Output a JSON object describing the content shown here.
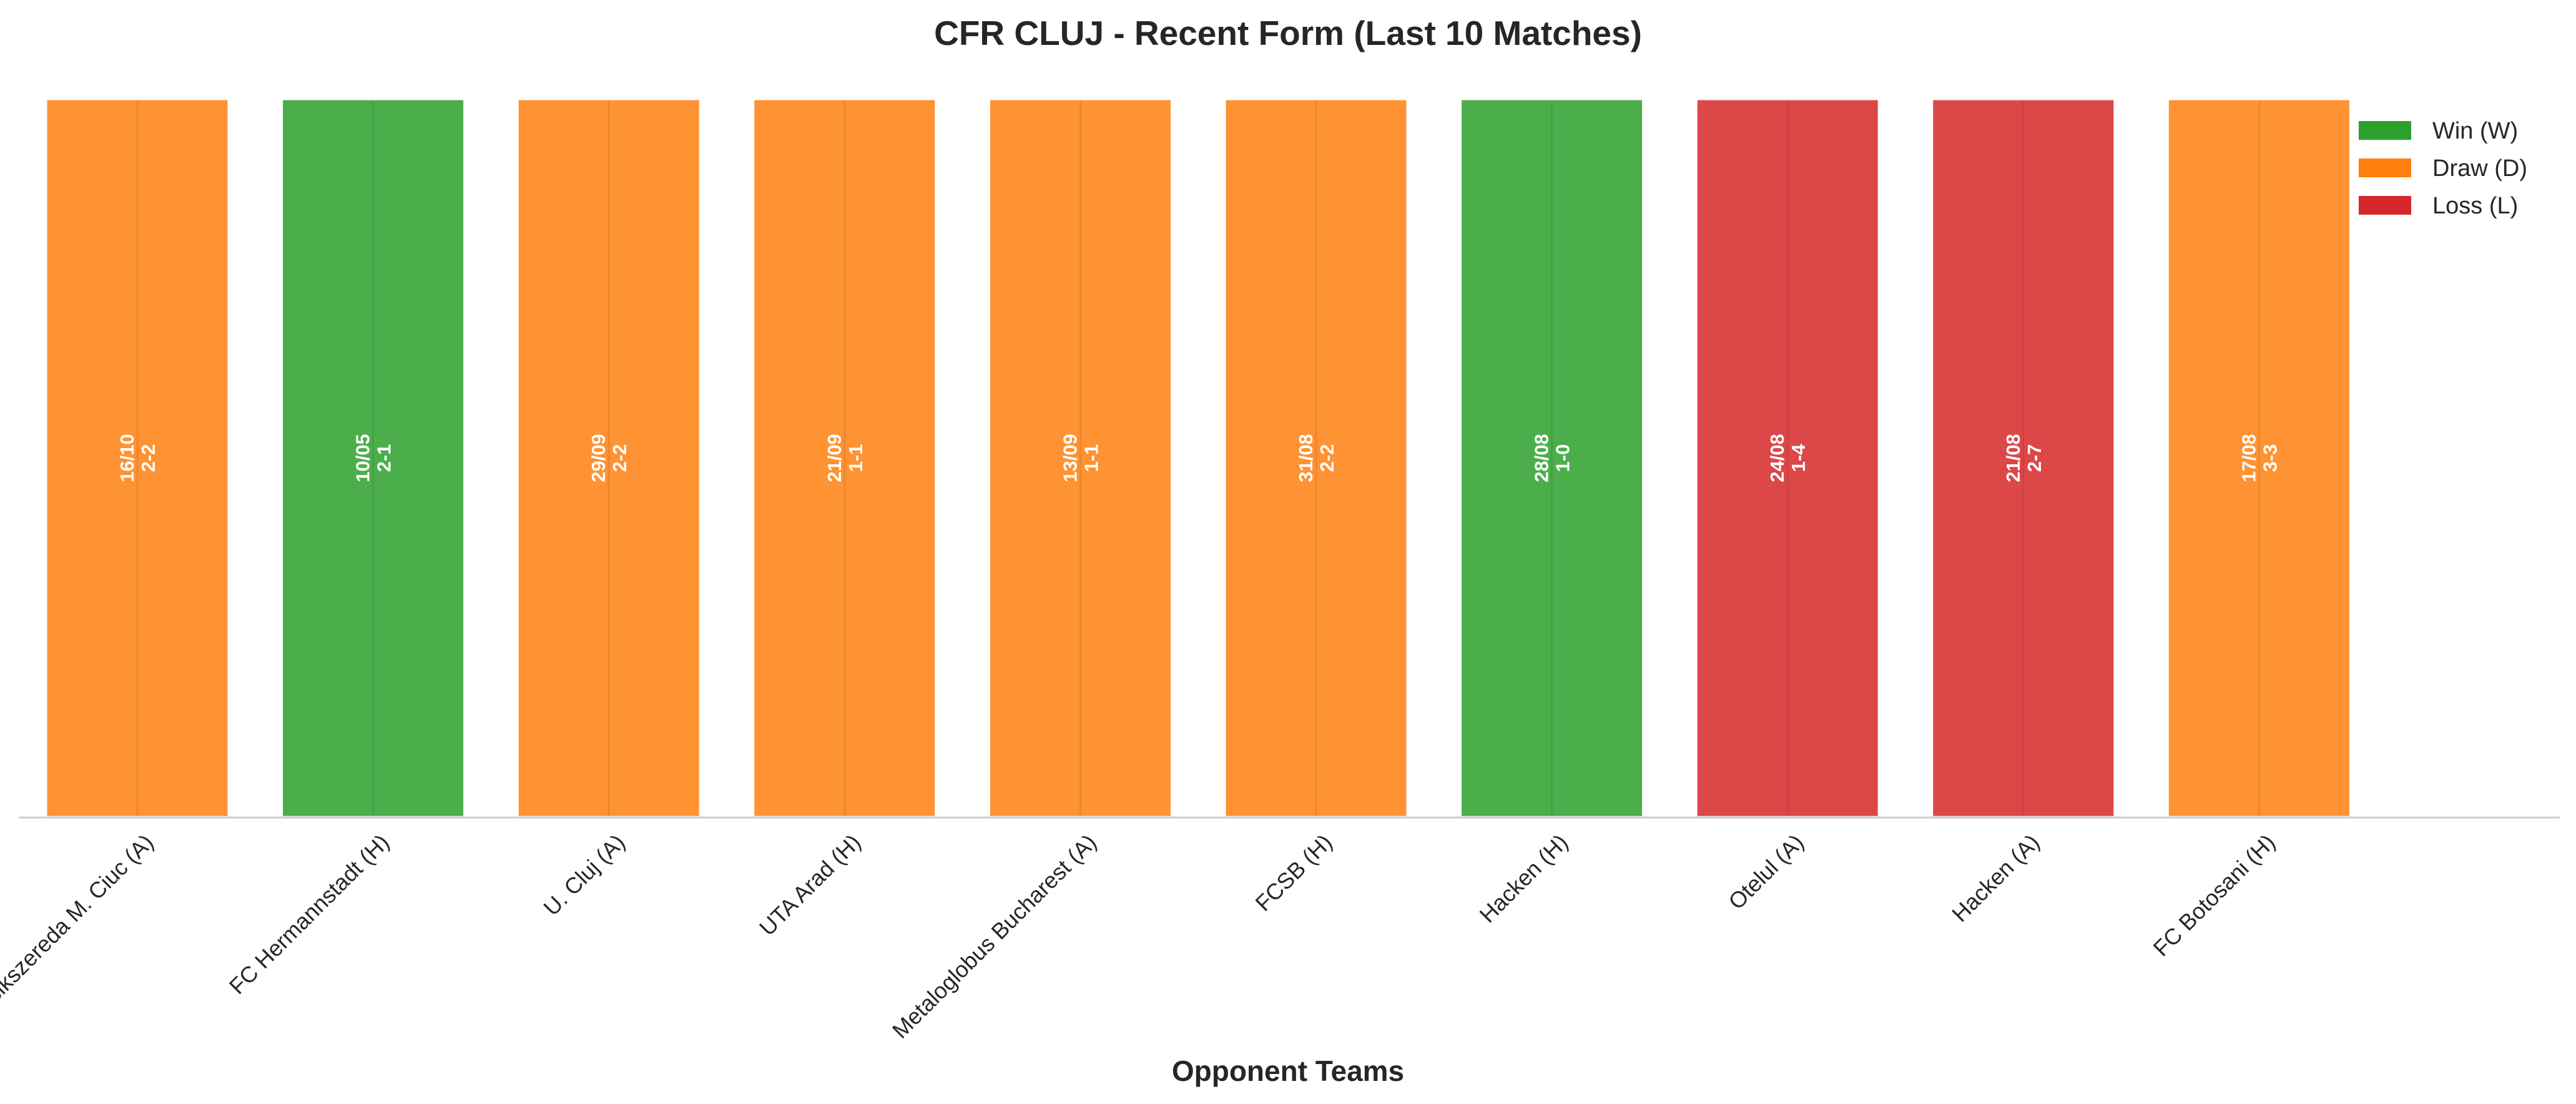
{
  "chart_data": {
    "type": "bar",
    "title": "CFR CLUJ - Recent Form (Last 10 Matches)",
    "xlabel": "Opponent Teams",
    "ylabel": "",
    "ylim": [
      0,
      1
    ],
    "grid": false,
    "legend_position": "top-right",
    "categories": [
      "Csikszereda M. Ciuc (A)",
      "FC Hermannstadt (H)",
      "U. Cluj (A)",
      "UTA Arad (H)",
      "Metaloglobus Bucharest (A)",
      "FCSB (H)",
      "Hacken (H)",
      "Otelul (A)",
      "Hacken (A)",
      "FC Botosani (H)"
    ],
    "values": [
      1,
      1,
      1,
      1,
      1,
      1,
      1,
      1,
      1,
      1
    ],
    "results": [
      "D",
      "W",
      "D",
      "D",
      "D",
      "D",
      "W",
      "L",
      "L",
      "D"
    ],
    "dates": [
      "16/10",
      "10/05",
      "29/09",
      "21/09",
      "13/09",
      "31/08",
      "28/08",
      "24/08",
      "21/08",
      "17/08"
    ],
    "scores": [
      "2-2",
      "2-1",
      "2-2",
      "1-1",
      "1-1",
      "2-2",
      "1-0",
      "1-4",
      "2-7",
      "3-3"
    ],
    "colors": {
      "W": "#2ca02c",
      "D": "#ff7f0e",
      "L": "#d62728"
    },
    "legend": [
      {
        "key": "W",
        "label": "Win (W)"
      },
      {
        "key": "D",
        "label": "Draw (D)"
      },
      {
        "key": "L",
        "label": "Loss (L)"
      }
    ]
  }
}
